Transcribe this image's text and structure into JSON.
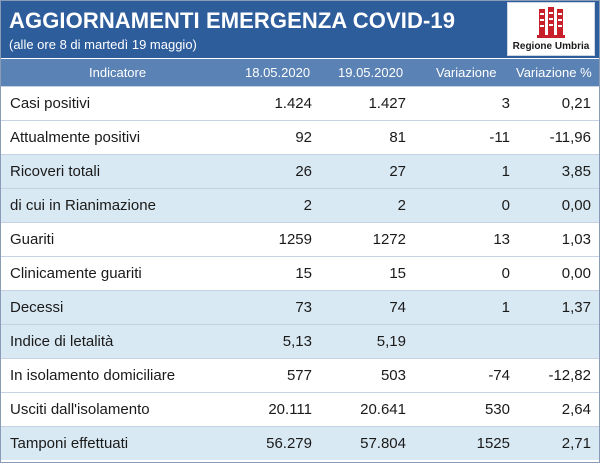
{
  "header": {
    "title": "AGGIORNAMENTI EMERGENZA COVID-19",
    "subtitle": "(alle ore 8 di martedì 19 maggio)",
    "logo_text": "Regione Umbria",
    "logo_icon": "umbria-ceri-emblem-icon"
  },
  "table": {
    "columns": [
      "Indicatore",
      "18.05.2020",
      "19.05.2020",
      "Variazione",
      "Variazione %"
    ],
    "rows": [
      {
        "name": "Casi positivi",
        "d1": "1.424",
        "d2": "1.427",
        "var": "3",
        "pct": "0,21"
      },
      {
        "name": "Attualmente positivi",
        "d1": "92",
        "d2": "81",
        "var": "-11",
        "pct": "-11,96"
      },
      {
        "name": "Ricoveri totali",
        "d1": "26",
        "d2": "27",
        "var": "1",
        "pct": "3,85"
      },
      {
        "name": "di cui in Rianimazione",
        "d1": "2",
        "d2": "2",
        "var": "0",
        "pct": "0,00"
      },
      {
        "name": "Guariti",
        "d1": "1259",
        "d2": "1272",
        "var": "13",
        "pct": "1,03"
      },
      {
        "name": "Clinicamente guariti",
        "d1": "15",
        "d2": "15",
        "var": "0",
        "pct": "0,00"
      },
      {
        "name": "Decessi",
        "d1": "73",
        "d2": "74",
        "var": "1",
        "pct": "1,37"
      },
      {
        "name": "Indice di letalità",
        "d1": "5,13",
        "d2": "5,19",
        "var": "",
        "pct": ""
      },
      {
        "name": "In isolamento domiciliare",
        "d1": "577",
        "d2": "503",
        "var": "-74",
        "pct": "-12,82"
      },
      {
        "name": "Usciti dall'isolamento",
        "d1": "20.111",
        "d2": "20.641",
        "var": "530",
        "pct": "2,64"
      },
      {
        "name": "Tamponi effettuati",
        "d1": "56.279",
        "d2": "57.804",
        "var": "1525",
        "pct": "2,71"
      }
    ]
  },
  "colors": {
    "header_bg": "#2e5d9c",
    "column_header_bg": "#5a82b4",
    "row_alt_bg": "#d9e9f3",
    "logo_red": "#c8202a"
  }
}
